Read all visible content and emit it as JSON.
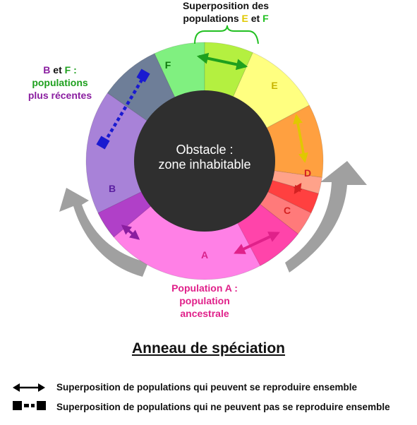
{
  "title": "Anneau de spéciation",
  "obstacle": {
    "line1": "Obstacle :",
    "line2": "zone inhabitable"
  },
  "segments": [
    {
      "id": "A",
      "label": "A",
      "color": "#ff80e6",
      "label_color": "#d9228c"
    },
    {
      "id": "B",
      "label": "B",
      "color": "#a882d8",
      "label_color": "#5a1ea0"
    },
    {
      "id": "C",
      "label": "C",
      "color": "#ff7a7a",
      "label_color": "#d42222"
    },
    {
      "id": "D",
      "label": "D",
      "color": "#ffa28a",
      "label_color": "#d42222"
    },
    {
      "id": "E",
      "label": "E",
      "color": "#ffff80",
      "label_color": "#c8b400"
    },
    {
      "id": "F",
      "label": "F",
      "color": "#80f080",
      "label_color": "#0e7a0e"
    },
    {
      "id": "BF",
      "label": "",
      "color": "#6e7e98",
      "label_color": "#000000"
    }
  ],
  "labels": {
    "top": {
      "line1": "Superposition des",
      "line2_prefix": "populations",
      "e": "E",
      "et": "et",
      "f": "F"
    },
    "left": {
      "b": "B",
      "et": "et",
      "f": "F :",
      "line2": "populations",
      "line3": "plus récentes"
    },
    "bottom": {
      "line1": "Population A :",
      "line2": "population",
      "line3": "ancestrale"
    }
  },
  "legend": [
    {
      "icon": "double-arrow-icon",
      "text": "Superposition de populations qui peuvent se reproduire ensemble"
    },
    {
      "icon": "dashed-double-arrow-icon",
      "text": "Superposition de populations qui ne peuvent pas se reproduire ensemble"
    }
  ],
  "colors": {
    "obstacle": "#2f2f2f",
    "arrows_gray": "#a0a0a0",
    "magenta": "#e0218a",
    "green": "#1ea01e",
    "yellow": "#e0c800",
    "purple": "#8a1ea0",
    "blue": "#1a1ad0"
  }
}
